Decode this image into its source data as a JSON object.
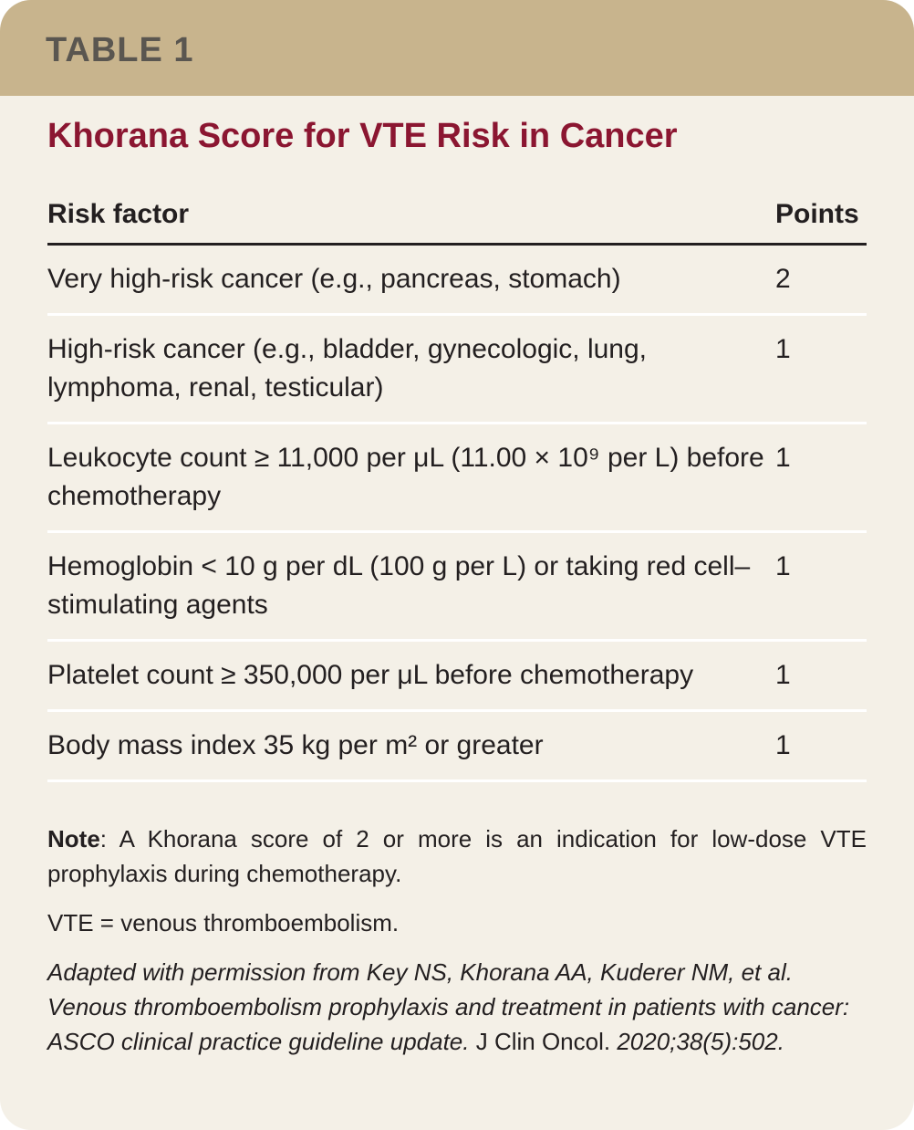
{
  "header": {
    "label": "TABLE 1"
  },
  "title": "Khorana Score for VTE Risk in Cancer",
  "table": {
    "columns": [
      "Risk factor",
      "Points"
    ],
    "rows": [
      [
        "Very high-risk cancer (e.g., pancreas, stomach)",
        2
      ],
      [
        "High-risk cancer (e.g., bladder, gynecologic, lung, lymphoma, renal, testicular)",
        1
      ],
      [
        "Leukocyte count ≥ 11,000 per μL (11.00 × 10⁹ per L) before chemotherapy",
        1
      ],
      [
        "Hemoglobin < 10 g per dL (100 g per L) or taking red cell–stimulating agents",
        1
      ],
      [
        "Platelet count ≥ 350,000 per μL before chemotherapy",
        1
      ],
      [
        "Body mass index 35 kg per m² or greater",
        1
      ]
    ]
  },
  "note": {
    "label": "Note",
    "text": ": A Khorana score of 2 or more is an indication for low-dose VTE prophylaxis during chemotherapy."
  },
  "abbreviation": "VTE = venous thromboembolism.",
  "source": {
    "text_1": "Adapted with permission from Key NS, Khorana AA, Kuderer NM, et al. Venous thromboembolism prophylaxis and treatment in patients with cancer: ASCO clinical practice guideline update.",
    "journal": "J Clin Oncol.",
    "text_2": "2020;38(5):502."
  }
}
